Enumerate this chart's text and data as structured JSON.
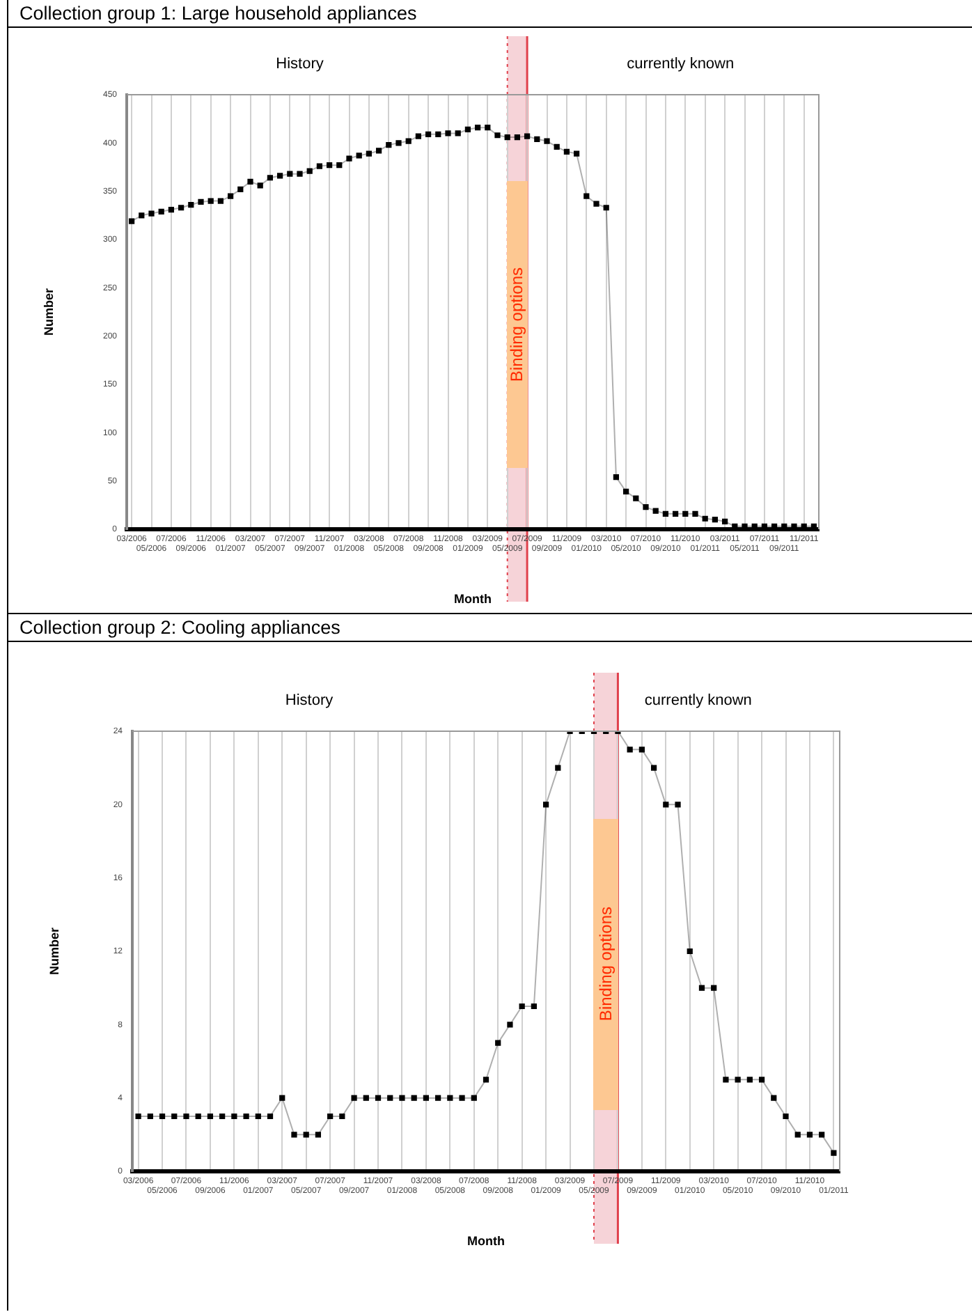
{
  "chart_data": [
    {
      "type": "line",
      "title": "Collection group 1: Large household appliances",
      "xlabel": "Month",
      "ylabel": "Number",
      "categories": [
        "03/2006",
        null,
        "05/2006",
        null,
        "07/2006",
        null,
        "09/2006",
        null,
        "11/2006",
        null,
        "01/2007",
        null,
        "03/2007",
        null,
        "05/2007",
        null,
        "07/2007",
        null,
        "09/2007",
        null,
        "11/2007",
        null,
        "01/2008",
        null,
        "03/2008",
        null,
        "05/2008",
        null,
        "07/2008",
        null,
        "09/2008",
        null,
        "11/2008",
        null,
        "01/2009",
        null,
        "03/2009",
        null,
        "05/2009",
        null,
        "07/2009",
        null,
        "09/2009",
        null,
        "11/2009",
        null,
        "01/2010",
        null,
        "03/2010",
        null,
        "05/2010",
        null,
        "07/2010",
        null,
        "09/2010",
        null,
        "11/2010",
        null,
        "01/2011",
        null,
        "03/2011",
        null,
        "05/2011",
        null,
        "07/2011",
        null,
        "09/2011",
        null,
        "11/2011",
        null
      ],
      "series": [
        {
          "color": "#000000",
          "values": [
            319,
            325,
            327,
            329,
            331,
            333,
            336,
            339,
            340,
            340,
            345,
            352,
            360,
            356,
            364,
            366,
            368,
            368,
            371,
            376,
            377,
            377,
            384,
            387,
            389,
            392,
            398,
            400,
            402,
            407,
            409,
            409,
            410,
            410,
            414,
            416,
            416,
            408,
            406,
            406,
            407,
            404,
            402,
            396,
            391,
            389,
            345,
            337,
            333,
            54,
            39,
            32,
            23,
            19,
            16,
            16,
            16,
            16,
            11,
            10,
            8,
            3,
            3,
            3,
            3,
            3,
            3,
            3,
            3,
            3
          ]
        }
      ],
      "ylim": [
        0,
        450
      ],
      "yticks": [
        0,
        50,
        100,
        150,
        200,
        250,
        300,
        350,
        400,
        450
      ],
      "bands": [
        {
          "axis": "x",
          "from": "05/2009",
          "to": "07/2009",
          "label": "Binding options",
          "color": "#f6d3d8"
        }
      ],
      "ref_lines": [
        {
          "axis": "x",
          "value": "05/2009",
          "color": "#e0404c",
          "line_style": "dotted"
        },
        {
          "axis": "x",
          "value": "07/2009",
          "color": "#e0404c",
          "line_style": "solid"
        }
      ],
      "annotations": [
        "History",
        "currently known"
      ],
      "grid": "x",
      "legend": false,
      "marker": "square",
      "line_style": "solid"
    },
    {
      "type": "line",
      "title": "Collection group 2: Cooling appliances",
      "xlabel": "Month",
      "ylabel": "Number",
      "categories": [
        "03/2006",
        null,
        "05/2006",
        null,
        "07/2006",
        null,
        "09/2006",
        null,
        "11/2006",
        null,
        "01/2007",
        null,
        "03/2007",
        null,
        "05/2007",
        null,
        "07/2007",
        null,
        "09/2007",
        null,
        "11/2007",
        null,
        "01/2008",
        null,
        "03/2008",
        null,
        "05/2008",
        null,
        "07/2008",
        null,
        "09/2008",
        null,
        "11/2008",
        null,
        "01/2009",
        null,
        "03/2009",
        null,
        "05/2009",
        null,
        "07/2009",
        null,
        "09/2009",
        null,
        "11/2009",
        null,
        "01/2010",
        null,
        "03/2010",
        null,
        "05/2010",
        null,
        "07/2010",
        null,
        "09/2010",
        null,
        "11/2010",
        null,
        "01/2011"
      ],
      "series": [
        {
          "color": "#000000",
          "values": [
            3,
            3,
            3,
            3,
            3,
            3,
            3,
            3,
            3,
            3,
            3,
            3,
            4,
            2,
            2,
            2,
            3,
            3,
            4,
            4,
            4,
            4,
            4,
            4,
            4,
            4,
            4,
            4,
            4,
            5,
            7,
            8,
            9,
            9,
            20,
            22,
            24,
            24,
            24,
            24,
            24,
            23,
            23,
            22,
            20,
            20,
            12,
            10,
            10,
            5,
            5,
            5,
            5,
            4,
            3,
            2,
            2,
            2,
            1
          ]
        }
      ],
      "ylim": [
        0,
        24
      ],
      "yticks": [
        0,
        4,
        8,
        12,
        16,
        20,
        24
      ],
      "bands": [
        {
          "axis": "x",
          "from": "05/2009",
          "to": "07/2009",
          "label": "Binding options",
          "color": "#f6d3d8"
        }
      ],
      "ref_lines": [
        {
          "axis": "x",
          "value": "05/2009",
          "color": "#e0404c",
          "line_style": "dotted"
        },
        {
          "axis": "x",
          "value": "07/2009",
          "color": "#e0404c",
          "line_style": "solid"
        }
      ],
      "annotations": [
        "History",
        "currently known"
      ],
      "grid": "x",
      "legend": false,
      "marker": "square",
      "line_style": "solid"
    }
  ]
}
